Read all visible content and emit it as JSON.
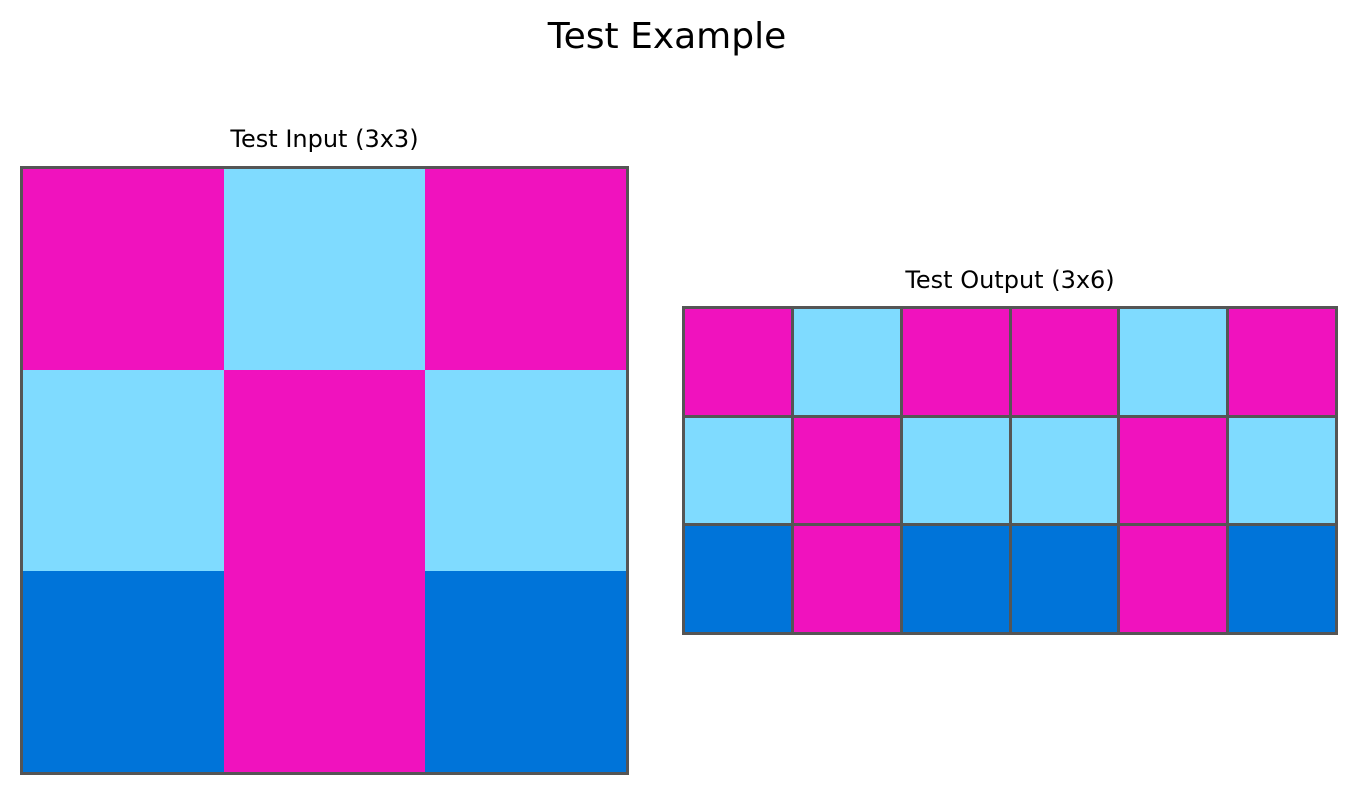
{
  "title": "Test Example",
  "palette": {
    "0": "#000000",
    "1": "#0074D9",
    "6": "#F012BE",
    "8": "#7FDBFF"
  },
  "grid_line_color": "#555555",
  "panels": {
    "input": {
      "title": "Test Input (3x3)",
      "rows": 3,
      "cols": 3,
      "cells": [
        [
          6,
          8,
          6
        ],
        [
          8,
          6,
          8
        ],
        [
          1,
          6,
          1
        ]
      ]
    },
    "output": {
      "title": "Test Output (3x6)",
      "rows": 3,
      "cols": 6,
      "cells": [
        [
          6,
          8,
          6,
          6,
          8,
          6
        ],
        [
          8,
          6,
          8,
          8,
          6,
          8
        ],
        [
          1,
          6,
          1,
          1,
          6,
          1
        ]
      ]
    }
  }
}
